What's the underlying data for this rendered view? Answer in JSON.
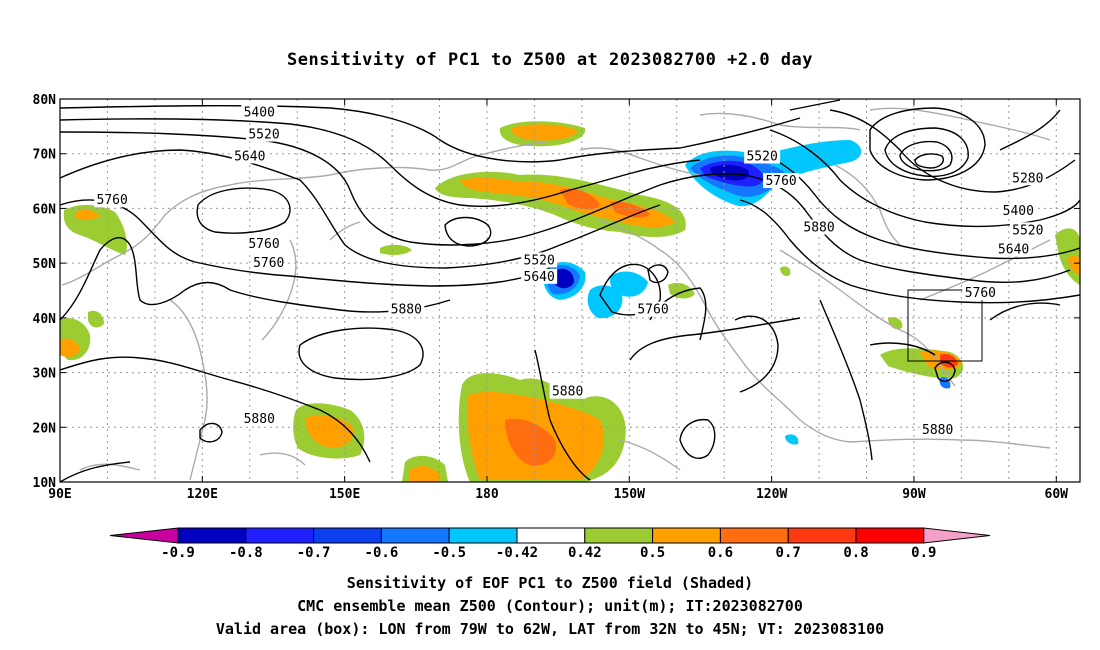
{
  "title": "Sensitivity of PC1 to Z500 at 2023082700 +2.0 day",
  "map": {
    "lat_labels": [
      "80N",
      "70N",
      "60N",
      "50N",
      "40N",
      "30N",
      "20N",
      "10N"
    ],
    "lon_labels": [
      "90E",
      "120E",
      "150E",
      "180",
      "150W",
      "120W",
      "90W",
      "60W"
    ],
    "extent": {
      "lon_min": 90,
      "lon_max": 305,
      "lat_min": 10,
      "lat_max": 80
    },
    "box": {
      "lon_from": "79W",
      "lon_to": "62W",
      "lat_from": "32N",
      "lat_to": "45N"
    },
    "contour_labels": [
      {
        "text": "5400",
        "lon": 132,
        "lat": 77.5
      },
      {
        "text": "5520",
        "lon": 133,
        "lat": 73.5
      },
      {
        "text": "5640",
        "lon": 130,
        "lat": 69.5
      },
      {
        "text": "5760",
        "lon": 101,
        "lat": 61.5
      },
      {
        "text": "5760",
        "lon": 133,
        "lat": 53.5
      },
      {
        "text": "5760",
        "lon": 134,
        "lat": 50
      },
      {
        "text": "5520",
        "lon": 191,
        "lat": 50.5
      },
      {
        "text": "5640",
        "lon": 191,
        "lat": 47.5
      },
      {
        "text": "5880",
        "lon": 163,
        "lat": 41.5
      },
      {
        "text": "5880",
        "lon": 197,
        "lat": 26.5
      },
      {
        "text": "5880",
        "lon": 132,
        "lat": 21.5
      },
      {
        "text": "5760",
        "lon": 215,
        "lat": 41.5
      },
      {
        "text": "5520",
        "lon": 238,
        "lat": 69.5
      },
      {
        "text": "5760",
        "lon": 242,
        "lat": 65
      },
      {
        "text": "5880",
        "lon": 250,
        "lat": 56.5
      },
      {
        "text": "5280",
        "lon": 294,
        "lat": 65.5
      },
      {
        "text": "5400",
        "lon": 292,
        "lat": 59.5
      },
      {
        "text": "5520",
        "lon": 294,
        "lat": 56
      },
      {
        "text": "5640",
        "lon": 291,
        "lat": 52.5
      },
      {
        "text": "5760",
        "lon": 284,
        "lat": 44.5
      },
      {
        "text": "5880",
        "lon": 275,
        "lat": 19.5
      }
    ]
  },
  "colorbar": {
    "labels": [
      "-0.9",
      "-0.8",
      "-0.7",
      "-0.6",
      "-0.5",
      "-0.42",
      "0.42",
      "0.5",
      "0.6",
      "0.7",
      "0.8",
      "0.9"
    ],
    "colors": [
      "#0000c0",
      "#1f1fff",
      "#0b3ff0",
      "#1477ff",
      "#00c8ff",
      "#ffffff",
      "#9bcd32",
      "#ff9f00",
      "#ff6d10",
      "#ff3a10",
      "#ff0000"
    ],
    "low_end_color": "#c800a0",
    "high_end_color": "#f5a0c8"
  },
  "captions": {
    "line1": "Sensitivity of EOF PC1 to Z500 field (Shaded)",
    "line2": "CMC ensemble mean Z500 (Contour); unit(m); IT:2023082700",
    "line3": "Valid area (box): LON from 79W to 62W, LAT from 32N to 45N; VT: 2023083100"
  }
}
